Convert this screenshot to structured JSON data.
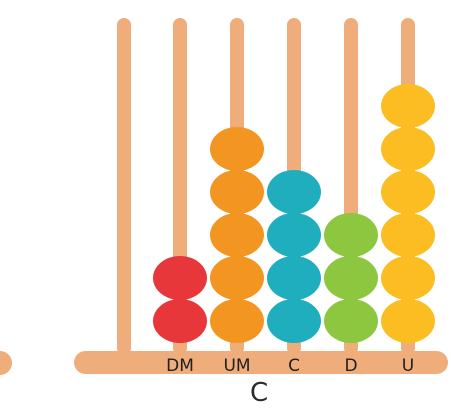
{
  "abacus": {
    "rods": [
      {
        "label": "",
        "beads": 0,
        "color": ""
      },
      {
        "label": "DM",
        "beads": 2,
        "color": "#e8373a"
      },
      {
        "label": "UM",
        "beads": 5,
        "color": "#f39521"
      },
      {
        "label": "C",
        "beads": 4,
        "color": "#1faebd"
      },
      {
        "label": "D",
        "beads": 3,
        "color": "#8dc63f"
      },
      {
        "label": "U",
        "beads": 6,
        "color": "#fbbd22"
      }
    ],
    "frame_color": "#f0ad7c",
    "caption": "C"
  }
}
